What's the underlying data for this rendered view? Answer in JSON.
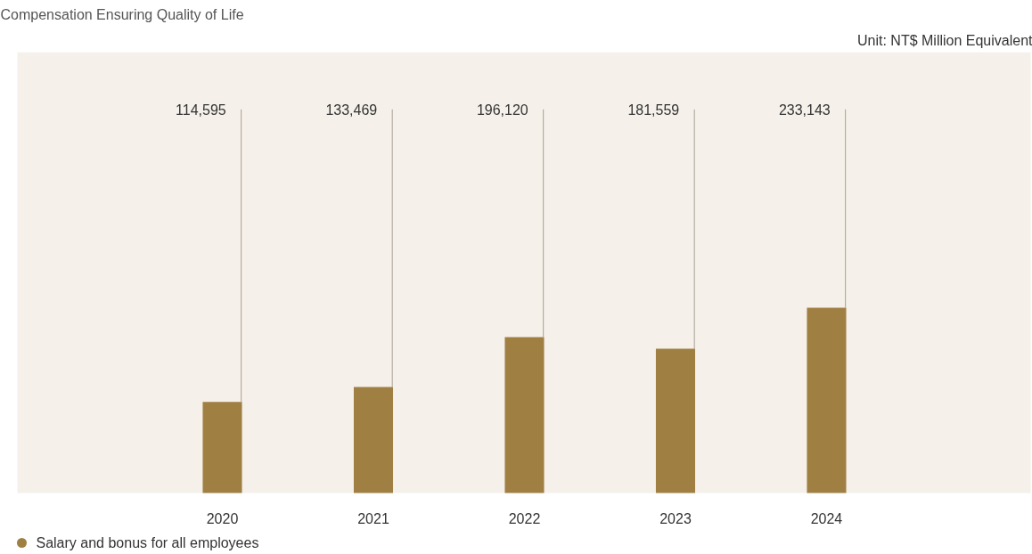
{
  "chart_data": {
    "type": "bar",
    "title": "Compensation Ensuring Quality of Life",
    "subtitle": "Unit: NT$ Million Equivalent",
    "categories": [
      "2020",
      "2021",
      "2022",
      "2023",
      "2024"
    ],
    "series": [
      {
        "name": "Salary and bonus for all employees",
        "color": "#a07f42",
        "values": [
          114595,
          133469,
          196120,
          181559,
          233143
        ],
        "value_labels": [
          "114,595",
          "133,469",
          "196,120",
          "181,559",
          "233,143"
        ]
      }
    ],
    "legend": "bottom left",
    "grid": false
  }
}
